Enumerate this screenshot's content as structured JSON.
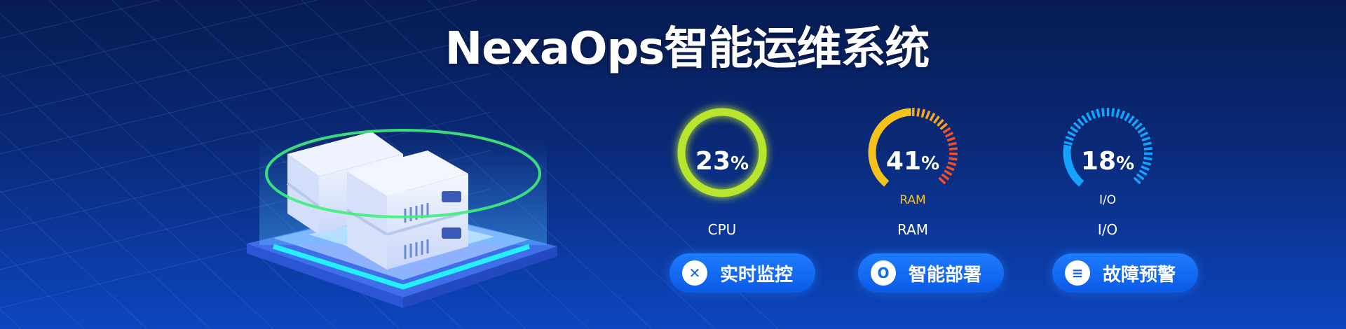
{
  "title": "NexaOps智能运维系统",
  "gauges": [
    {
      "id": "cpu",
      "value": "23",
      "unit": "%",
      "label": "CPU",
      "inner_label": "",
      "percent": 23,
      "color": "#b8e62e"
    },
    {
      "id": "ram",
      "value": "41",
      "unit": "%",
      "label": "RAM",
      "inner_label": "RAM",
      "percent": 41,
      "color": "#f5c21b",
      "accent": "#f0502a",
      "inner_color": "#f5c21b"
    },
    {
      "id": "io",
      "value": "18",
      "unit": "%",
      "label": "I/O",
      "inner_label": "I/O",
      "percent": 18,
      "color": "#14a4ff",
      "accent": "#14a4ff",
      "inner_color": "#ffffff"
    }
  ],
  "buttons": [
    {
      "label": "实时监控",
      "icon": "close-x-icon",
      "glyph": "✕"
    },
    {
      "label": "智能部署",
      "icon": "ring-icon",
      "glyph": "O"
    },
    {
      "label": "故障预警",
      "icon": "menu-lines-icon",
      "glyph": "≡"
    }
  ]
}
